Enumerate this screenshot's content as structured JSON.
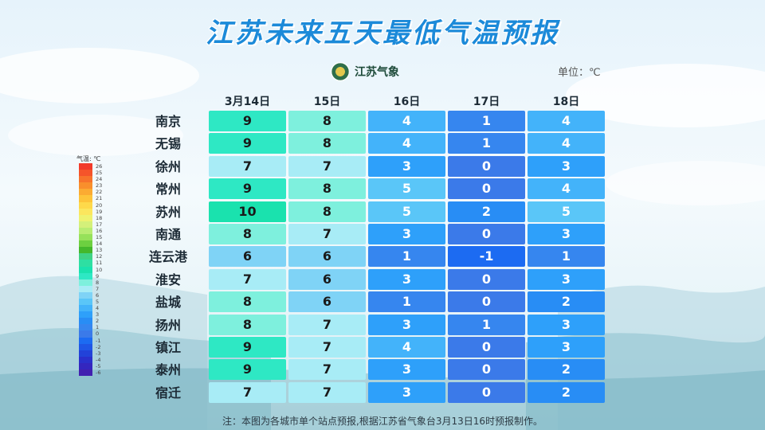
{
  "title": "江苏未来五天最低气温预报",
  "logo": {
    "text": "江苏气象",
    "name": "cma-emblem"
  },
  "unit": {
    "label": "单位：",
    "value": "℃"
  },
  "chart_data": {
    "type": "table",
    "columns": [
      "3月14日",
      "15日",
      "16日",
      "17日",
      "18日"
    ],
    "rows": [
      {
        "city": "南京",
        "values": [
          9,
          8,
          4,
          1,
          4
        ]
      },
      {
        "city": "无锡",
        "values": [
          9,
          8,
          4,
          1,
          4
        ]
      },
      {
        "city": "徐州",
        "values": [
          7,
          7,
          3,
          0,
          3
        ]
      },
      {
        "city": "常州",
        "values": [
          9,
          8,
          5,
          0,
          4
        ]
      },
      {
        "city": "苏州",
        "values": [
          10,
          8,
          5,
          2,
          5
        ]
      },
      {
        "city": "南通",
        "values": [
          8,
          7,
          3,
          0,
          3
        ]
      },
      {
        "city": "连云港",
        "values": [
          6,
          6,
          1,
          -1,
          1
        ]
      },
      {
        "city": "淮安",
        "values": [
          7,
          6,
          3,
          0,
          3
        ]
      },
      {
        "city": "盐城",
        "values": [
          8,
          6,
          1,
          0,
          2
        ]
      },
      {
        "city": "扬州",
        "values": [
          8,
          7,
          3,
          1,
          3
        ]
      },
      {
        "city": "镇江",
        "values": [
          9,
          7,
          4,
          0,
          3
        ]
      },
      {
        "city": "泰州",
        "values": [
          9,
          7,
          3,
          0,
          2
        ]
      },
      {
        "city": "宿迁",
        "values": [
          7,
          7,
          3,
          0,
          2
        ]
      }
    ],
    "legend": {
      "title": "气温",
      "unit": "℃",
      "items": [
        {
          "label": "26",
          "color": "#f23a2a"
        },
        {
          "label": "25",
          "color": "#f5542a"
        },
        {
          "label": "24",
          "color": "#f7732b"
        },
        {
          "label": "23",
          "color": "#f98f2c"
        },
        {
          "label": "22",
          "color": "#fbab32"
        },
        {
          "label": "21",
          "color": "#fdc43a"
        },
        {
          "label": "20",
          "color": "#fed94a"
        },
        {
          "label": "19",
          "color": "#fbe65e"
        },
        {
          "label": "18",
          "color": "#eef270"
        },
        {
          "label": "17",
          "color": "#d4f07a"
        },
        {
          "label": "16",
          "color": "#b8ec72"
        },
        {
          "label": "15",
          "color": "#96e15a"
        },
        {
          "label": "14",
          "color": "#6dd040"
        },
        {
          "label": "13",
          "color": "#44b82c"
        },
        {
          "label": "12",
          "color": "#3fd285"
        },
        {
          "label": "11",
          "color": "#2edfa2"
        },
        {
          "label": "10",
          "color": "#1ae2ae"
        },
        {
          "label": "9",
          "color": "#2ee8c4"
        },
        {
          "label": "8",
          "color": "#7ef0dd"
        },
        {
          "label": "7",
          "color": "#a8ecf6"
        },
        {
          "label": "6",
          "color": "#7fd3f6"
        },
        {
          "label": "5",
          "color": "#5ac6f8"
        },
        {
          "label": "4",
          "color": "#43b3fa"
        },
        {
          "label": "3",
          "color": "#2ea0fa"
        },
        {
          "label": "2",
          "color": "#288df5"
        },
        {
          "label": "1",
          "color": "#3686ef"
        },
        {
          "label": "0",
          "color": "#3b7ae9"
        },
        {
          "label": "-1",
          "color": "#1c6bf2"
        },
        {
          "label": "-2",
          "color": "#1f56e6"
        },
        {
          "label": "-3",
          "color": "#2242d9"
        },
        {
          "label": "-4",
          "color": "#2a30cc"
        },
        {
          "label": "-5",
          "color": "#3426bf"
        },
        {
          "label": "-6",
          "color": "#4120b0"
        }
      ]
    }
  },
  "note": "注：本图为各城市单个站点预报,根据江苏省气象台3月13日16时预报制作。"
}
